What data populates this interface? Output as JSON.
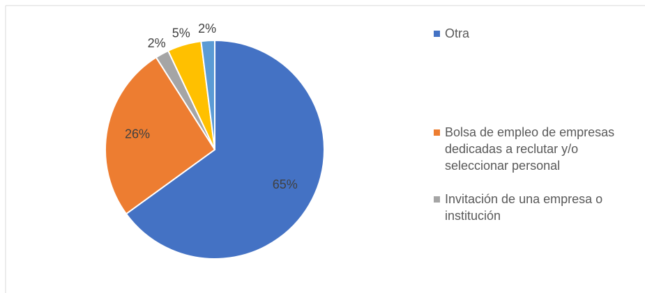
{
  "chart_data": {
    "type": "pie",
    "categories": [
      "Otra",
      "Bolsa de empleo de empresas dedicadas a reclutar y/o seleccionar personal",
      "Invitación de una empresa o institución",
      null,
      null
    ],
    "values": [
      65,
      26,
      2,
      5,
      2
    ],
    "value_labels": [
      "65%",
      "26%",
      "2%",
      "5%",
      "2%"
    ],
    "colors": [
      "#4472c4",
      "#ed7d31",
      "#a5a5a5",
      "#ffc000",
      "#5b9bd5"
    ],
    "legend": "right"
  }
}
